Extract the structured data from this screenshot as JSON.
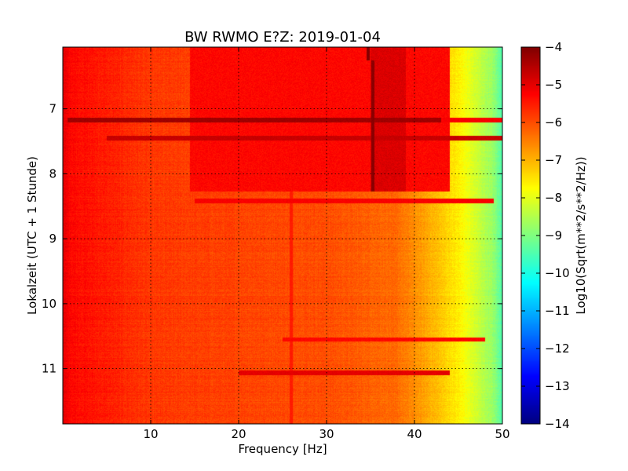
{
  "chart_data": [
    {
      "type": "heatmap",
      "title": "BW RWMO E?Z: 2019-01-04",
      "xlabel": "Frequency [Hz]",
      "ylabel": "Lokalzeit (UTC + 1 Stunde)",
      "xlim": [
        0,
        50
      ],
      "ylim": [
        11.85,
        6.05
      ],
      "y_inverted": true,
      "grid": true,
      "x_ticks": [
        10,
        20,
        30,
        40,
        50
      ],
      "x_tick_labels": [
        "10",
        "20",
        "30",
        "40",
        "50"
      ],
      "y_ticks": [
        7,
        8,
        9,
        10,
        11
      ],
      "y_tick_labels": [
        "7",
        "8",
        "9",
        "10",
        "11"
      ],
      "colormap": "jet",
      "background_level_vs_frequency": [
        {
          "f": 0,
          "v": -5.0
        },
        {
          "f": 1,
          "v": -5.3
        },
        {
          "f": 10,
          "v": -5.8
        },
        {
          "f": 20,
          "v": -5.9
        },
        {
          "f": 30,
          "v": -6.0
        },
        {
          "f": 38,
          "v": -6.3
        },
        {
          "f": 42,
          "v": -7.0
        },
        {
          "f": 45,
          "v": -7.6
        },
        {
          "f": 47,
          "v": -8.2
        },
        {
          "f": 49,
          "v": -8.8
        },
        {
          "f": 50,
          "v": -9.5
        }
      ],
      "features": [
        {
          "kind": "band",
          "t_start": 6.05,
          "t_end": 8.27,
          "f_start": 14.5,
          "f_end": 44,
          "level": -5.3,
          "description": "elevated broadband block"
        },
        {
          "kind": "band",
          "t_start": 6.05,
          "t_end": 8.27,
          "f_start": 35,
          "f_end": 39,
          "level": -4.9,
          "description": "strongest part of block"
        },
        {
          "kind": "line",
          "t": 7.17,
          "f_start": 0.5,
          "f_end": 43,
          "level": -4.3
        },
        {
          "kind": "line",
          "t": 7.17,
          "f_start": 43,
          "f_end": 50,
          "level": -5.2
        },
        {
          "kind": "line",
          "t": 7.45,
          "f_start": 5,
          "f_end": 50,
          "level": -4.7
        },
        {
          "kind": "line",
          "t": 8.42,
          "f_start": 15,
          "f_end": 49,
          "level": -5.2
        },
        {
          "kind": "line",
          "t": 11.06,
          "f_start": 20,
          "f_end": 44,
          "level": -5.0
        },
        {
          "kind": "line",
          "t": 10.55,
          "f_start": 25,
          "f_end": 48,
          "level": -5.3
        },
        {
          "kind": "vertical",
          "f": 35.3,
          "t_start": 6.25,
          "t_end": 8.27,
          "level": -4.1
        },
        {
          "kind": "vertical",
          "f": 34.7,
          "t_start": 6.05,
          "t_end": 6.25,
          "level": -4.0
        },
        {
          "kind": "vertical",
          "f": 43.5,
          "t_start": 6.05,
          "t_end": 8.27,
          "level": -5.5
        },
        {
          "kind": "vertical",
          "f": 26,
          "t_start": 8.27,
          "t_end": 11.85,
          "level": -5.5
        }
      ]
    },
    {
      "type": "colorbar",
      "label": "Log10(Sqrt(m**2/s**2/Hz))",
      "range": [
        -14,
        -4
      ],
      "ticks": [
        -4,
        -5,
        -6,
        -7,
        -8,
        -9,
        -10,
        -11,
        -12,
        -13,
        -14
      ],
      "tick_labels": [
        "−4",
        "−5",
        "−6",
        "−7",
        "−8",
        "−9",
        "−10",
        "−11",
        "−12",
        "−13",
        "−14"
      ]
    }
  ]
}
